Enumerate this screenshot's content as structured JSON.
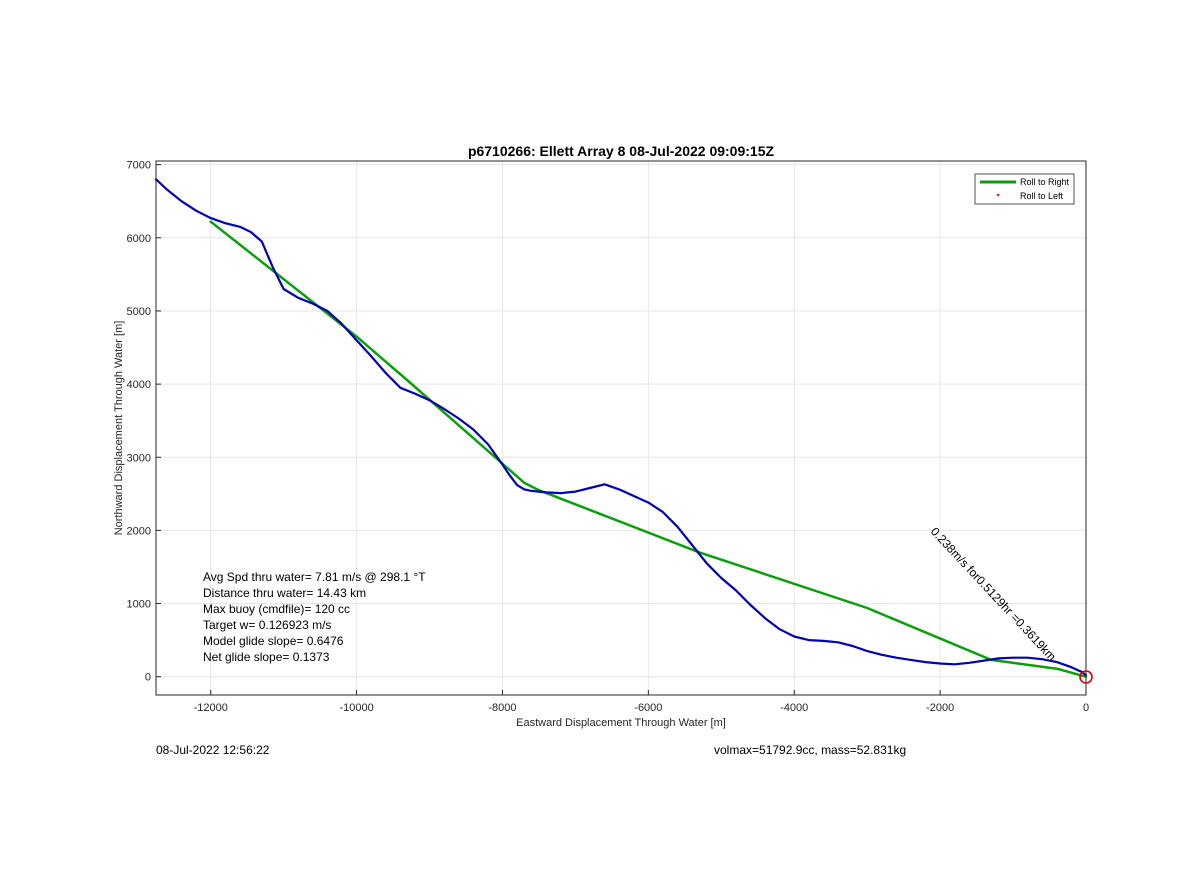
{
  "chart_data": {
    "type": "line",
    "title": "p6710266: Ellett Array 8 08-Jul-2022 09:09:15Z",
    "xlabel": "Eastward Displacement Through Water [m]",
    "ylabel": "Northward Displacement Through Water [m]",
    "xlim": [
      -12750,
      0
    ],
    "ylim": [
      -250,
      7050
    ],
    "xticks": [
      -12000,
      -10000,
      -8000,
      -6000,
      -4000,
      -2000,
      0
    ],
    "yticks": [
      0,
      1000,
      2000,
      3000,
      4000,
      5000,
      6000,
      7000
    ],
    "grid": true,
    "legend_position": "top-right",
    "legend": [
      {
        "label": "Roll to Right",
        "color": "#0a9e0a",
        "style": "line"
      },
      {
        "label": "Roll to Left",
        "color": "#ff0000",
        "style": "dot"
      }
    ],
    "series": [
      {
        "name": "Roll to Right",
        "color": "#0a9e0a",
        "x": [
          -12000,
          -10000,
          -9300,
          -7700,
          -7500,
          -5300,
          -3000,
          -1300,
          -400,
          0
        ],
        "y": [
          6220,
          4650,
          4050,
          2650,
          2550,
          1700,
          940,
          230,
          110,
          0
        ]
      },
      {
        "color": "#0000b4",
        "x": [
          -12750,
          -12600,
          -12400,
          -12200,
          -12000,
          -11800,
          -11600,
          -11450,
          -11300,
          -11150,
          -11000,
          -10800,
          -10600,
          -10400,
          -10200,
          -10000,
          -9800,
          -9600,
          -9400,
          -9200,
          -9000,
          -8800,
          -8600,
          -8400,
          -8200,
          -8000,
          -7900,
          -7800,
          -7700,
          -7600,
          -7400,
          -7200,
          -7000,
          -6800,
          -6600,
          -6400,
          -6200,
          -6000,
          -5800,
          -5600,
          -5400,
          -5200,
          -5000,
          -4800,
          -4600,
          -4400,
          -4200,
          -4000,
          -3800,
          -3600,
          -3400,
          -3200,
          -3000,
          -2800,
          -2600,
          -2400,
          -2200,
          -2000,
          -1800,
          -1600,
          -1400,
          -1200,
          -1000,
          -800,
          -600,
          -400,
          -200,
          -50,
          0
        ],
        "y": [
          6800,
          6660,
          6500,
          6370,
          6270,
          6200,
          6150,
          6080,
          5950,
          5600,
          5300,
          5180,
          5100,
          5000,
          4820,
          4600,
          4380,
          4150,
          3950,
          3870,
          3780,
          3660,
          3530,
          3380,
          3180,
          2900,
          2750,
          2620,
          2560,
          2540,
          2520,
          2510,
          2530,
          2580,
          2630,
          2560,
          2470,
          2380,
          2250,
          2050,
          1800,
          1550,
          1350,
          1180,
          980,
          800,
          650,
          550,
          500,
          490,
          470,
          420,
          350,
          300,
          260,
          230,
          200,
          180,
          170,
          190,
          220,
          250,
          260,
          260,
          240,
          200,
          130,
          60,
          20
        ]
      }
    ],
    "annotations": {
      "stats": [
        "Avg Spd thru water=  7.81 m/s @ 298.1 °T",
        "Distance thru water= 14.43 km",
        "Max buoy (cmdfile)= 120 cc",
        "Target w= 0.126923 m/s",
        "Model glide slope= 0.6476",
        "Net glide slope= 0.1373"
      ],
      "rotated_label": "0.238m/s for0.5129hr =0.3619km"
    }
  },
  "footer": {
    "timestamp": "08-Jul-2022 12:56:22",
    "volmax": "volmax=51792.9cc, mass=52.831kg"
  }
}
